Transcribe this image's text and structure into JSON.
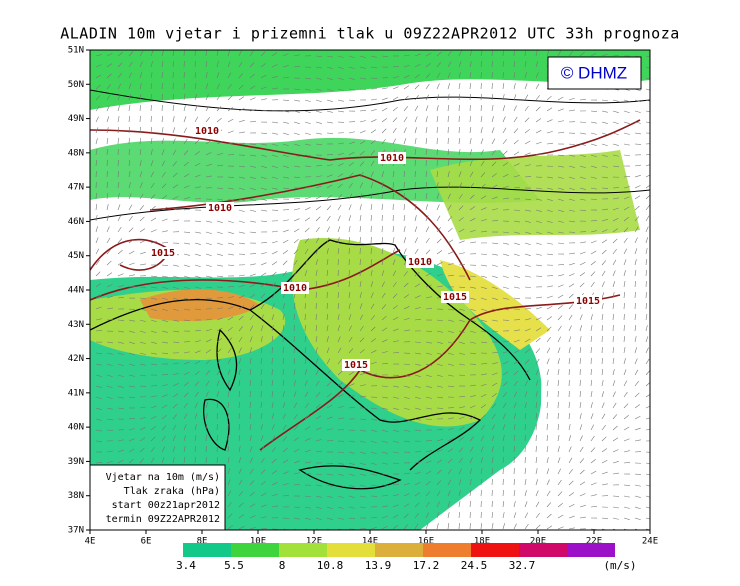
{
  "header": {
    "title": "ALADIN 10m vjetar i prizemni tlak u 09Z22APR2012 UTC 33h prognoza"
  },
  "watermark": "© DHMZ",
  "axes": {
    "x_labels": [
      "4E",
      "6E",
      "8E",
      "10E",
      "12E",
      "14E",
      "16E",
      "18E",
      "20E",
      "22E",
      "24E"
    ],
    "y_labels": [
      "51N",
      "50N",
      "49N",
      "48N",
      "47N",
      "46N",
      "45N",
      "44N",
      "43N",
      "42N",
      "41N",
      "40N",
      "39N",
      "38N",
      "37N"
    ]
  },
  "isobars": [
    "1010",
    "1010",
    "1010",
    "1015",
    "1010",
    "1010",
    "1015",
    "1015",
    "1015"
  ],
  "info_box": [
    "Vjetar na 10m (m/s)",
    "Tlak zraka (hPa)",
    "start 00z21apr2012",
    "termin 09Z22APR2012"
  ],
  "legend": {
    "thresholds": [
      3.4,
      5.5,
      8,
      10.8,
      13.9,
      17.2,
      24.5,
      32.7
    ],
    "unit": "(m/s)"
  }
}
